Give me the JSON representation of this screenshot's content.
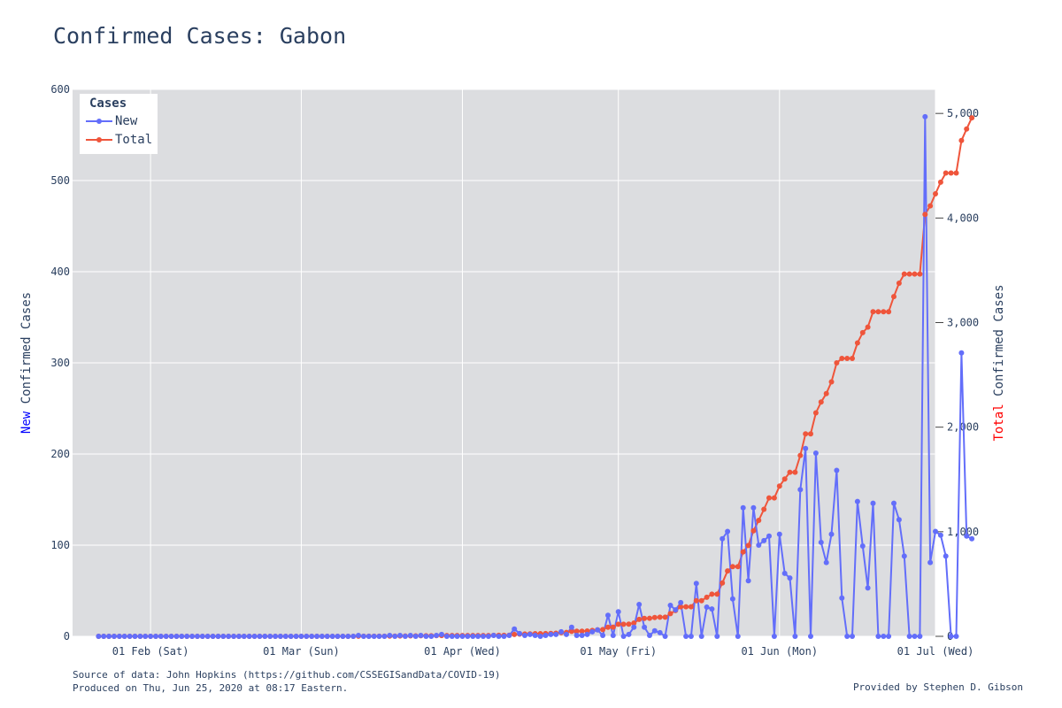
{
  "title": "Confirmed Cases: Gabon",
  "footer": {
    "source": "Source of data: John Hopkins (https://github.com/CSSEGISandData/COVID-19)",
    "produced": "Produced on Thu, Jun 25, 2020 at 08:17 Eastern.",
    "provided": "Provided by Stephen D. Gibson"
  },
  "colors": {
    "new": "#636efa",
    "total": "#ef553b",
    "plot_bg": "#dcdde0",
    "grid": "#ffffff",
    "text": "#2a3f5f"
  },
  "chart_data": {
    "type": "line",
    "legend": {
      "title": "Cases",
      "placement": "top-left"
    },
    "x": {
      "start_date": "2020-01-22",
      "end_date": "2020-06-24",
      "range": [
        "2020-01-17",
        "2020-07-01"
      ],
      "tick_labels": [
        "01 Feb (Sat)",
        "01 Mar (Sun)",
        "01 Apr (Wed)",
        "01 May (Fri)",
        "01 Jun (Mon)",
        "01 Jul (Wed)"
      ],
      "tick_dates": [
        "2020-02-01",
        "2020-03-01",
        "2020-04-01",
        "2020-05-01",
        "2020-06-01",
        "2020-07-01"
      ]
    },
    "y_left": {
      "label_colored": "New",
      "label_rest": " Confirmed Cases",
      "ylim": [
        0,
        600
      ],
      "ticks": [
        0,
        100,
        200,
        300,
        400,
        500,
        600
      ],
      "tick_labels": [
        "0",
        "100",
        "200",
        "300",
        "400",
        "500",
        "600"
      ]
    },
    "y_right": {
      "label_colored": "Total",
      "label_rest": " Confirmed Cases",
      "ylim": [
        0,
        5230
      ],
      "ticks": [
        0,
        1000,
        2000,
        3000,
        4000,
        5000
      ],
      "tick_labels": [
        "0",
        "1,000",
        "2,000",
        "3,000",
        "4,000",
        "5,000"
      ]
    },
    "grid": true,
    "series": [
      {
        "name": "New",
        "axis": "left",
        "values": [
          0,
          0,
          0,
          0,
          0,
          0,
          0,
          0,
          0,
          0,
          0,
          0,
          0,
          0,
          0,
          0,
          0,
          0,
          0,
          0,
          0,
          0,
          0,
          0,
          0,
          0,
          0,
          0,
          0,
          0,
          0,
          0,
          0,
          0,
          0,
          0,
          0,
          0,
          0,
          0,
          0,
          0,
          0,
          0,
          0,
          0,
          0,
          0,
          0,
          0,
          1,
          0,
          0,
          0,
          0,
          0,
          1,
          0,
          1,
          0,
          1,
          0,
          1,
          0,
          0,
          1,
          2,
          0,
          0,
          0,
          0,
          0,
          0,
          0,
          0,
          0,
          1,
          0,
          0,
          1,
          8,
          3,
          1,
          2,
          1,
          0,
          1,
          2,
          2,
          5,
          2,
          10,
          1,
          1,
          2,
          5,
          7,
          1,
          23,
          1,
          27,
          0,
          2,
          10,
          35,
          10,
          1,
          6,
          4,
          0,
          34,
          29,
          37,
          0,
          0,
          58,
          0,
          32,
          30,
          0,
          107,
          115,
          41,
          0,
          141,
          61,
          141,
          100,
          105,
          110,
          0,
          112,
          69,
          64,
          0,
          161,
          206,
          0,
          201,
          103,
          81,
          112,
          182,
          42,
          0,
          0,
          148,
          99,
          53,
          146,
          0,
          0,
          0,
          146,
          128,
          88,
          0,
          0,
          0,
          570,
          81,
          115,
          111,
          88,
          0,
          0,
          311,
          110,
          107
        ]
      },
      {
        "name": "Total",
        "axis": "right",
        "values": [
          0,
          0,
          0,
          0,
          0,
          0,
          0,
          0,
          0,
          0,
          0,
          0,
          0,
          0,
          0,
          0,
          0,
          0,
          0,
          0,
          0,
          0,
          0,
          0,
          0,
          0,
          0,
          0,
          0,
          0,
          0,
          0,
          0,
          0,
          0,
          0,
          0,
          0,
          0,
          0,
          0,
          0,
          0,
          0,
          0,
          0,
          0,
          0,
          0,
          0,
          1,
          1,
          1,
          1,
          1,
          1,
          2,
          2,
          3,
          3,
          4,
          4,
          5,
          5,
          5,
          6,
          8,
          8,
          8,
          8,
          8,
          8,
          8,
          8,
          8,
          8,
          9,
          9,
          9,
          10,
          18,
          21,
          22,
          24,
          25,
          25,
          26,
          28,
          30,
          35,
          37,
          47,
          48,
          49,
          51,
          56,
          63,
          64,
          87,
          88,
          115,
          115,
          117,
          127,
          162,
          172,
          173,
          179,
          183,
          183,
          217,
          246,
          283,
          283,
          283,
          341,
          341,
          373,
          403,
          403,
          510,
          625,
          666,
          666,
          807,
          868,
          1009,
          1109,
          1214,
          1324,
          1324,
          1436,
          1505,
          1569,
          1569,
          1730,
          1936,
          1936,
          2137,
          2240,
          2321,
          2433,
          2615,
          2657,
          2657,
          2657,
          2805,
          2904,
          2957,
          3103,
          3103,
          3103,
          3103,
          3249,
          3377,
          3465,
          3465,
          3465,
          3465,
          4035,
          4116,
          4231,
          4342,
          4430,
          4430,
          4430,
          4741,
          4851,
          4958
        ]
      }
    ]
  }
}
